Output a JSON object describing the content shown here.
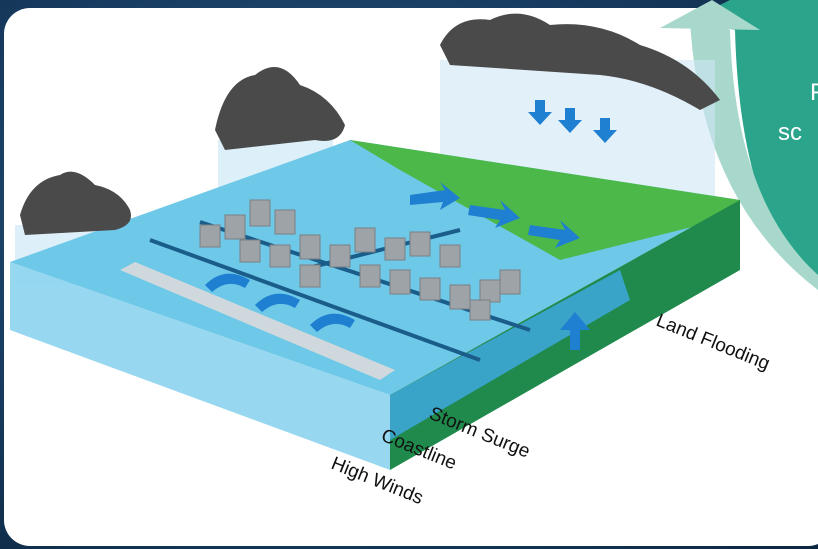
{
  "callout": {
    "lines": [
      "F",
      "sc"
    ]
  },
  "labels": [
    "Land Flooding",
    "Storm Surge",
    "Coastline",
    "High Winds"
  ]
}
